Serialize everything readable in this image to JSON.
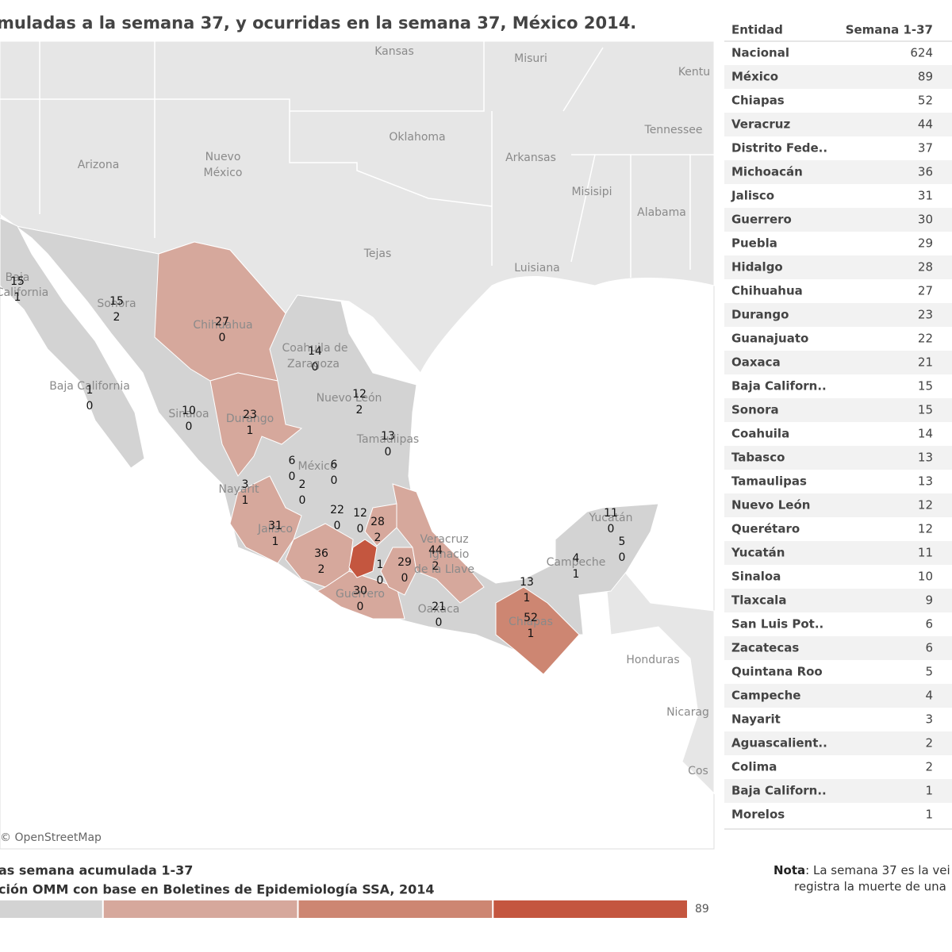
{
  "title": "muladas a la semana 37, y ocurridas en la semana 37, México 2014.",
  "map": {
    "place_labels": [
      "Kansas",
      "Misuri",
      "Kentu",
      "Oklahoma",
      "Tennessee",
      "Arizona",
      "Nuevo",
      "México",
      "Arkansas",
      "Misisipi",
      "Alabama",
      "Tejas",
      "Luisiana",
      "Honduras",
      "Nicarag",
      "Cos",
      "Baja California",
      "Sonora",
      "Chihuahua",
      "Coahuila de",
      "Zaragoza",
      "Nuevo León",
      "Tamaulipas",
      "Durango",
      "Sinaloa",
      "México",
      "Nayarit",
      "Jalisco",
      "Guerrero",
      "Oaxaca",
      "Chiapas",
      "Campeche",
      "Yucatán",
      "Veracruz",
      "Ignacio",
      "de la Llave",
      "Baja",
      "California"
    ],
    "attribution": "© OpenStreetMap",
    "states": [
      {
        "cumulative": 15,
        "week": 1
      },
      {
        "cumulative": 15,
        "week": 2
      },
      {
        "cumulative": 27,
        "week": 0
      },
      {
        "cumulative": 14,
        "week": 0
      },
      {
        "cumulative": 1,
        "week": 0
      },
      {
        "cumulative": 12,
        "week": 2
      },
      {
        "cumulative": 10,
        "week": 0
      },
      {
        "cumulative": 23,
        "week": 1
      },
      {
        "cumulative": 13,
        "week": 0
      },
      {
        "cumulative": 6,
        "week": 0
      },
      {
        "cumulative": 6,
        "week": 0
      },
      {
        "cumulative": 2,
        "week": 0
      },
      {
        "cumulative": 3,
        "week": 1
      },
      {
        "cumulative": 22,
        "week": 0
      },
      {
        "cumulative": 12,
        "week": 0
      },
      {
        "cumulative": 28,
        "week": 2
      },
      {
        "cumulative": 31,
        "week": 1
      },
      {
        "cumulative": 36,
        "week": 2
      },
      {
        "cumulative": 44,
        "week": 2
      },
      {
        "cumulative": 1,
        "week": 0
      },
      {
        "cumulative": 29,
        "week": 0
      },
      {
        "cumulative": 30,
        "week": 0
      },
      {
        "cumulative": 21,
        "week": 0
      },
      {
        "cumulative": 13,
        "week": 1
      },
      {
        "cumulative": 52,
        "week": 1
      },
      {
        "cumulative": 4,
        "week": 1
      },
      {
        "cumulative": 11,
        "week": 0
      },
      {
        "cumulative": 5,
        "week": 0
      }
    ]
  },
  "table": {
    "headers": [
      "Entidad",
      "Semana 1-37"
    ],
    "rows": [
      [
        "Nacional",
        624
      ],
      [
        "México",
        89
      ],
      [
        "Chiapas",
        52
      ],
      [
        "Veracruz",
        44
      ],
      [
        "Distrito Fede..",
        37
      ],
      [
        "Michoacán",
        36
      ],
      [
        "Jalisco",
        31
      ],
      [
        "Guerrero",
        30
      ],
      [
        "Puebla",
        29
      ],
      [
        "Hidalgo",
        28
      ],
      [
        "Chihuahua",
        27
      ],
      [
        "Durango",
        23
      ],
      [
        "Guanajuato",
        22
      ],
      [
        "Oaxaca",
        21
      ],
      [
        "Baja Californ..",
        15
      ],
      [
        "Sonora",
        15
      ],
      [
        "Coahuila",
        14
      ],
      [
        "Tabasco",
        13
      ],
      [
        "Tamaulipas",
        13
      ],
      [
        "Nuevo León",
        12
      ],
      [
        "Querétaro",
        12
      ],
      [
        "Yucatán",
        11
      ],
      [
        "Sinaloa",
        10
      ],
      [
        "Tlaxcala",
        9
      ],
      [
        "San Luis Pot..",
        6
      ],
      [
        "Zacatecas",
        6
      ],
      [
        "Quintana Roo",
        5
      ],
      [
        "Campeche",
        4
      ],
      [
        "Nayarit",
        3
      ],
      [
        "Aguascalient..",
        2
      ],
      [
        "Colima",
        2
      ],
      [
        "Baja Californ..",
        1
      ],
      [
        "Morelos",
        1
      ]
    ]
  },
  "legend": {
    "title": "as semana acumulada 1-37",
    "source": "ción OMM con base en Boletines de Epidemiología SSA, 2014",
    "max": 89,
    "colors": [
      "#d3d3d3",
      "#d6a89c",
      "#cd8672",
      "#c4563f"
    ]
  },
  "note": {
    "label": "Nota",
    "line1": ": La semana 37 es la vei",
    "line2": "registra la muerte de una"
  }
}
